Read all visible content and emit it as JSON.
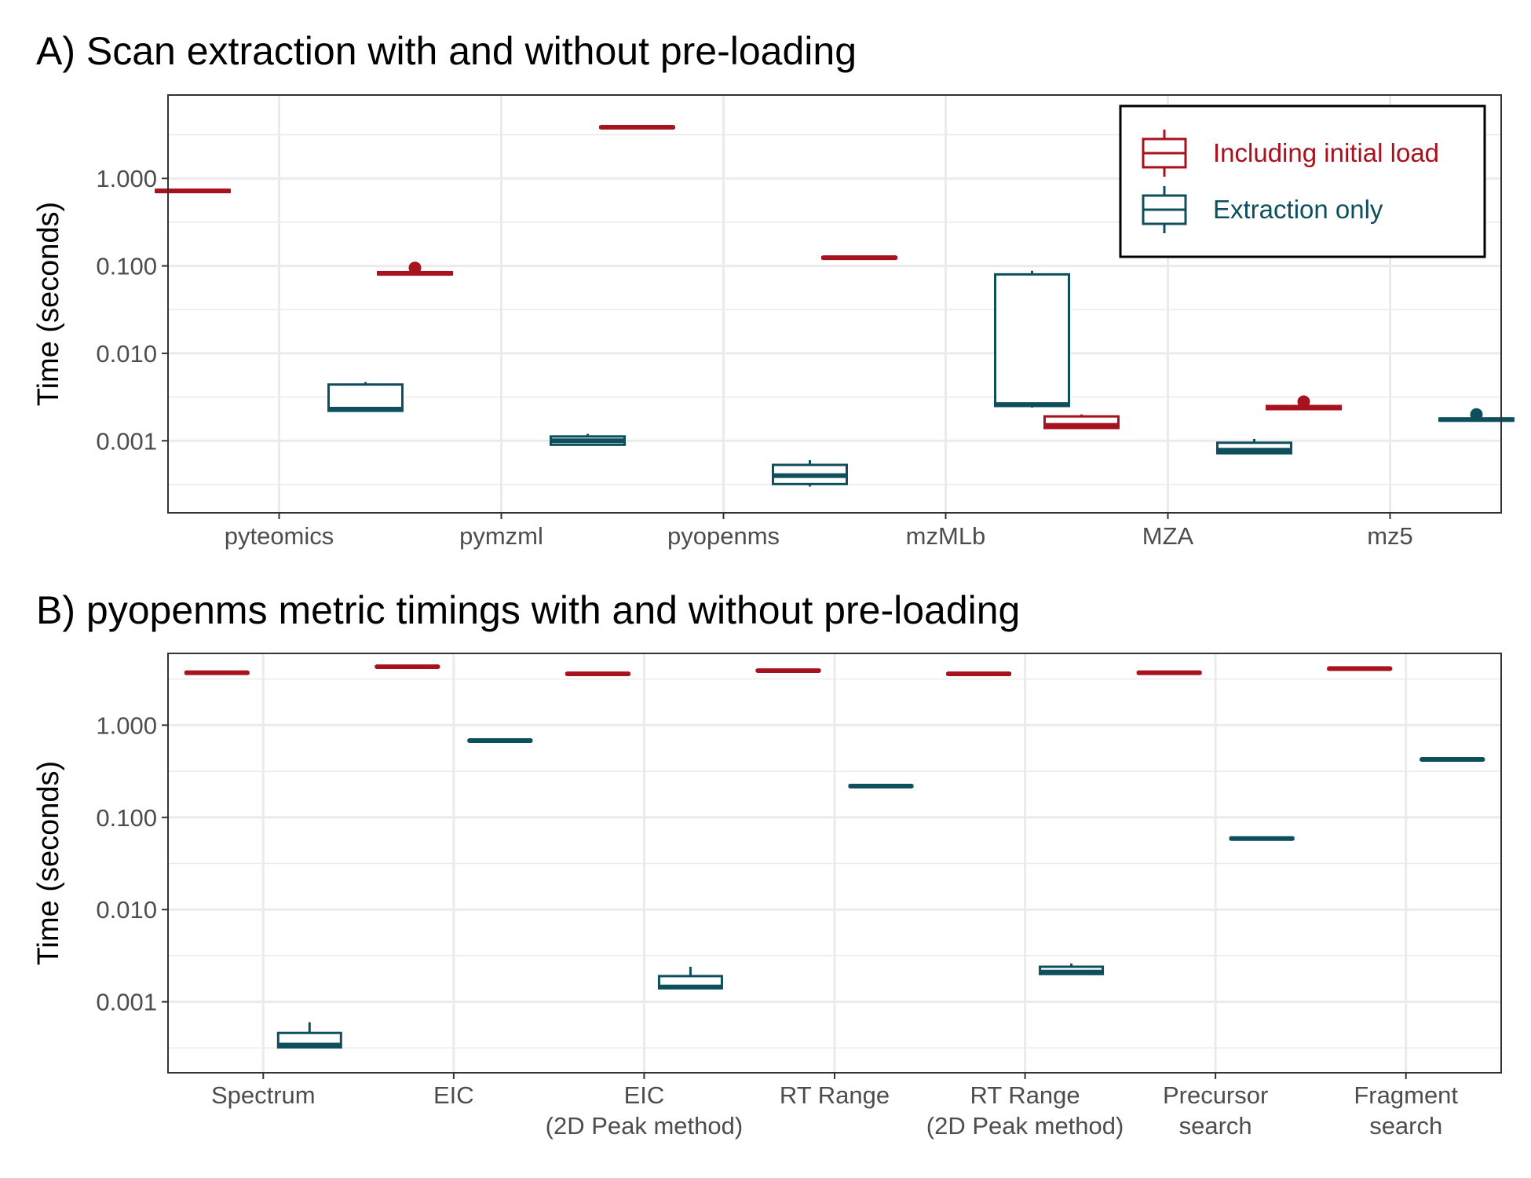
{
  "colors": {
    "including": "#a8121e",
    "extraction": "#0d4f5c",
    "grid": "#ebebeb",
    "panel_border": "#333333"
  },
  "chart_data": [
    {
      "type": "box",
      "title": "A) Scan extraction with and without pre-loading",
      "xlabel": "",
      "ylabel": "Time (seconds)",
      "yscale": "log10",
      "ylim": [
        0.00015,
        9
      ],
      "yticks": [
        "0.001",
        "0.010",
        "0.100",
        "1.000"
      ],
      "categories": [
        "pyteomics",
        "pymzml",
        "pyopenms",
        "mzMLb",
        "MZA",
        "mz5"
      ],
      "legend": {
        "position": "top-right",
        "entries": [
          "Including initial load",
          "Extraction only"
        ]
      },
      "series": [
        {
          "name": "Including initial load",
          "color_key": "including",
          "boxes": [
            {
              "min": 0.7,
              "q1": 0.7,
              "median": 0.72,
              "q3": 0.74,
              "max": 0.76,
              "outliers": []
            },
            {
              "min": 0.08,
              "q1": 0.08,
              "median": 0.082,
              "q3": 0.085,
              "max": 0.086,
              "outliers": [
                0.095
              ]
            },
            {
              "min": 3.8,
              "q1": 3.8,
              "median": 3.85,
              "q3": 3.9,
              "max": 3.95,
              "outliers": []
            },
            {
              "min": 0.122,
              "q1": 0.122,
              "median": 0.124,
              "q3": 0.126,
              "max": 0.128,
              "outliers": []
            },
            {
              "min": 0.0014,
              "q1": 0.0014,
              "median": 0.0015,
              "q3": 0.0019,
              "max": 0.002,
              "outliers": []
            },
            {
              "min": 0.0023,
              "q1": 0.0023,
              "median": 0.0024,
              "q3": 0.0025,
              "max": 0.0025,
              "outliers": [
                0.0028
              ]
            }
          ]
        },
        {
          "name": "Extraction only",
          "color_key": "extraction",
          "boxes": [
            {
              "min": 0.0022,
              "q1": 0.0022,
              "median": 0.0023,
              "q3": 0.0044,
              "max": 0.0047,
              "outliers": []
            },
            {
              "min": 0.0009,
              "q1": 0.0009,
              "median": 0.001,
              "q3": 0.00112,
              "max": 0.0012,
              "outliers": []
            },
            {
              "min": 0.0003,
              "q1": 0.00032,
              "median": 0.0004,
              "q3": 0.00053,
              "max": 0.0006,
              "outliers": []
            },
            {
              "min": 0.0024,
              "q1": 0.0025,
              "median": 0.0026,
              "q3": 0.08,
              "max": 0.088,
              "outliers": []
            },
            {
              "min": 0.00072,
              "q1": 0.00072,
              "median": 0.00078,
              "q3": 0.00095,
              "max": 0.00105,
              "outliers": []
            },
            {
              "min": 0.0017,
              "q1": 0.0017,
              "median": 0.00175,
              "q3": 0.0018,
              "max": 0.0018,
              "outliers": [
                0.002
              ]
            }
          ]
        }
      ]
    },
    {
      "type": "box",
      "title": "B) pyopenms metric timings with and without pre-loading",
      "xlabel": "",
      "ylabel": "Time (seconds)",
      "yscale": "log10",
      "ylim": [
        0.00017,
        6
      ],
      "yticks": [
        "0.001",
        "0.010",
        "0.100",
        "1.000"
      ],
      "categories": [
        [
          "Spectrum"
        ],
        [
          "EIC"
        ],
        [
          "EIC",
          "(2D Peak method)"
        ],
        [
          "RT Range"
        ],
        [
          "RT Range",
          "(2D Peak method)"
        ],
        [
          "Precursor",
          "search"
        ],
        [
          "Fragment",
          "search"
        ]
      ],
      "series": [
        {
          "name": "Including initial load",
          "color_key": "including",
          "boxes": [
            {
              "min": 3.6,
              "q1": 3.65,
              "median": 3.7,
              "q3": 3.75,
              "max": 3.8,
              "outliers": []
            },
            {
              "min": 4.2,
              "q1": 4.25,
              "median": 4.3,
              "q3": 4.35,
              "max": 4.4,
              "outliers": []
            },
            {
              "min": 3.5,
              "q1": 3.55,
              "median": 3.6,
              "q3": 3.65,
              "max": 3.7,
              "outliers": []
            },
            {
              "min": 3.8,
              "q1": 3.85,
              "median": 3.9,
              "q3": 3.95,
              "max": 4.0,
              "outliers": []
            },
            {
              "min": 3.5,
              "q1": 3.55,
              "median": 3.6,
              "q3": 3.65,
              "max": 3.7,
              "outliers": []
            },
            {
              "min": 3.6,
              "q1": 3.65,
              "median": 3.7,
              "q3": 3.75,
              "max": 3.8,
              "outliers": []
            },
            {
              "min": 4.0,
              "q1": 4.05,
              "median": 4.1,
              "q3": 4.15,
              "max": 4.2,
              "outliers": []
            }
          ]
        },
        {
          "name": "Extraction only",
          "color_key": "extraction",
          "boxes": [
            {
              "min": 0.00032,
              "q1": 0.00032,
              "median": 0.00034,
              "q3": 0.00046,
              "max": 0.0006,
              "outliers": []
            },
            {
              "min": 0.67,
              "q1": 0.67,
              "median": 0.68,
              "q3": 0.69,
              "max": 0.7,
              "outliers": []
            },
            {
              "min": 0.0014,
              "q1": 0.0014,
              "median": 0.00145,
              "q3": 0.0019,
              "max": 0.0024,
              "outliers": []
            },
            {
              "min": 0.215,
              "q1": 0.215,
              "median": 0.218,
              "q3": 0.222,
              "max": 0.225,
              "outliers": []
            },
            {
              "min": 0.002,
              "q1": 0.002,
              "median": 0.0021,
              "q3": 0.0024,
              "max": 0.0026,
              "outliers": []
            },
            {
              "min": 0.058,
              "q1": 0.058,
              "median": 0.059,
              "q3": 0.06,
              "max": 0.061,
              "outliers": []
            },
            {
              "min": 0.42,
              "q1": 0.42,
              "median": 0.425,
              "q3": 0.43,
              "max": 0.435,
              "outliers": []
            }
          ]
        }
      ]
    }
  ]
}
